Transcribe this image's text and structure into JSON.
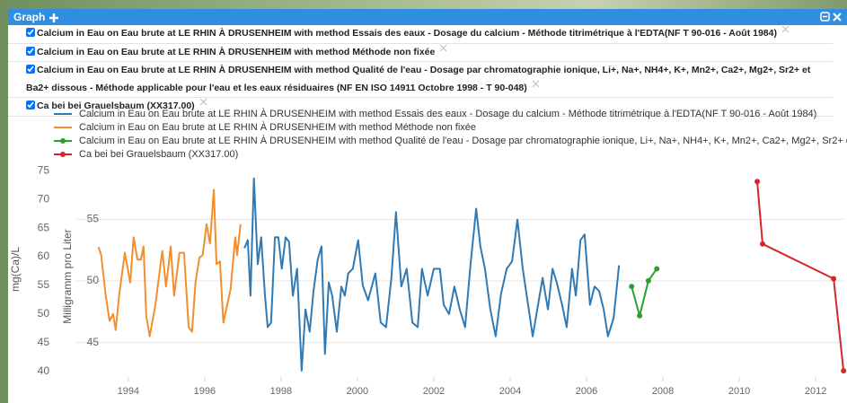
{
  "panel": {
    "title": "Graph"
  },
  "chart_data": {
    "type": "line",
    "xlim": [
      1992.64,
      2012.75
    ],
    "xticks": [
      1994,
      1996,
      1998,
      2000,
      2002,
      2004,
      2006,
      2008,
      2010,
      2012
    ],
    "ylim": [
      42.2,
      59.4
    ],
    "yticks": [
      45,
      50,
      55
    ],
    "ylabel": "Milligramm pro Liter",
    "grid": true,
    "y2lim": [
      39,
      76
    ],
    "y2ticks": [
      40,
      45,
      50,
      55,
      60,
      65,
      70,
      75
    ],
    "y2label": "mg(Ca)/L",
    "series": [
      {
        "name": "Calcium in Eau on Eau brute at LE RHIN À DRUSENHEIM with method Essais des eaux - Dosage du calcium - Méthode titrimétrique à l'EDTA(NF T 90-016 - Août 1984)",
        "color": "#2f7ab5",
        "axis": "y2",
        "marker": false,
        "x": [
          1997.04,
          1997.13,
          1997.2,
          1997.29,
          1997.39,
          1997.48,
          1997.58,
          1997.65,
          1997.74,
          1997.84,
          1997.93,
          1998.02,
          1998.12,
          1998.21,
          1998.31,
          1998.42,
          1998.54,
          1998.64,
          1998.75,
          1998.85,
          1998.96,
          1999.06,
          1999.15,
          1999.25,
          1999.34,
          1999.46,
          1999.58,
          1999.67,
          1999.76,
          1999.88,
          2000.02,
          2000.14,
          2000.28,
          2000.47,
          2000.61,
          2000.75,
          2000.89,
          2001.01,
          2001.15,
          2001.29,
          2001.44,
          2001.58,
          2001.69,
          2001.84,
          2002.0,
          2002.16,
          2002.26,
          2002.4,
          2002.54,
          2002.68,
          2002.82,
          2002.96,
          2003.11,
          2003.22,
          2003.34,
          2003.48,
          2003.62,
          2003.76,
          2003.91,
          2004.05,
          2004.19,
          2004.33,
          2004.47,
          2004.59,
          2004.71,
          2004.85,
          2004.99,
          2005.11,
          2005.22,
          2005.36,
          2005.48,
          2005.62,
          2005.72,
          2005.84,
          2005.95,
          2006.09,
          2006.21,
          2006.33,
          2006.45,
          2006.56,
          2006.71,
          2006.85
        ],
        "values": [
          61.5,
          62.9,
          53.2,
          73.7,
          58.7,
          63.4,
          53.2,
          47.7,
          48.5,
          63.4,
          63.4,
          57.9,
          63.4,
          62.6,
          53.2,
          57.9,
          40.1,
          50.8,
          46.9,
          54.0,
          59.5,
          61.8,
          43.0,
          55.5,
          53.2,
          46.9,
          54.8,
          53.2,
          57.1,
          57.9,
          62.9,
          55.0,
          52.4,
          57.1,
          48.5,
          47.7,
          56.3,
          67.8,
          54.8,
          57.9,
          48.5,
          47.7,
          57.9,
          53.2,
          57.9,
          57.9,
          51.6,
          50.0,
          54.8,
          50.8,
          47.7,
          58.5,
          68.4,
          61.8,
          57.9,
          50.8,
          46.1,
          53.5,
          57.9,
          59.2,
          66.5,
          57.9,
          51.6,
          46.1,
          50.8,
          56.3,
          50.8,
          57.9,
          55.5,
          51.6,
          47.7,
          57.9,
          53.2,
          62.9,
          63.9,
          51.6,
          54.8,
          54.0,
          50.8,
          46.1,
          49.3,
          58.5
        ]
      },
      {
        "name": "Calcium in Eau on Eau brute at LE RHIN À DRUSENHEIM with method Méthode non fixée",
        "color": "#f28e2b",
        "axis": "y2",
        "marker": false,
        "x": [
          1993.22,
          1993.29,
          1993.41,
          1993.51,
          1993.6,
          1993.67,
          1993.76,
          1993.91,
          1994.05,
          1994.14,
          1994.24,
          1994.33,
          1994.4,
          1994.47,
          1994.56,
          1994.71,
          1994.89,
          1994.99,
          1995.11,
          1995.2,
          1995.34,
          1995.46,
          1995.58,
          1995.67,
          1995.76,
          1995.86,
          1995.95,
          1996.05,
          1996.14,
          1996.24,
          1996.31,
          1996.4,
          1996.49,
          1996.59,
          1996.68,
          1996.8,
          1996.85,
          1996.94
        ],
        "values": [
          61.7,
          60.3,
          53.2,
          48.8,
          50.0,
          47.2,
          53.2,
          60.7,
          55.5,
          63.4,
          59.5,
          59.5,
          61.8,
          49.7,
          46.1,
          51.6,
          61.0,
          54.8,
          61.8,
          53.2,
          60.7,
          60.7,
          47.7,
          46.9,
          55.5,
          59.8,
          60.3,
          65.7,
          62.3,
          71.7,
          58.7,
          59.2,
          48.5,
          51.6,
          54.4,
          63.4,
          60.3,
          65.7
        ]
      },
      {
        "name": "Calcium in Eau on Eau brute at LE RHIN À DRUSENHEIM with method Qualité de l'eau - Dosage par chromatographie ionique, Li+, Na+, NH4+, K+, Mn2+, Ca2+, Mg2+, Sr2+ et Ba2+ dissous - Méthode applicable pour l'eau et les eaux résiduaires (NF EN ISO 14911 Octobre 1998 - T 90-048)",
        "color": "#2ca02c",
        "axis": "y2",
        "marker": true,
        "x": [
          2007.18,
          2007.39,
          2007.62,
          2007.84
        ],
        "values": [
          54.8,
          49.7,
          55.8,
          57.9
        ]
      },
      {
        "name": "Ca bei bei Grauelsbaum (XX317.00)",
        "color": "#d62728",
        "marker": true,
        "x": [
          2010.47,
          2010.61,
          2012.47,
          2012.73
        ],
        "values": [
          58.07,
          53.0,
          50.18,
          42.7
        ]
      }
    ]
  }
}
